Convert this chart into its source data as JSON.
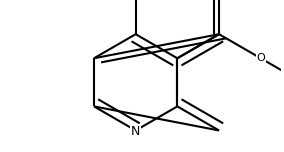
{
  "background_color": "#ffffff",
  "bond_color": "#000000",
  "bond_width": 1.5,
  "text_color": "#000000",
  "font_size": 8,
  "figsize": [
    2.84,
    1.52
  ],
  "dpi": 100,
  "bl": 0.38,
  "pc": [
    0.52,
    0.5
  ],
  "xlim": [
    0.0,
    2.2
  ],
  "ylim": [
    0.0,
    1.2
  ]
}
